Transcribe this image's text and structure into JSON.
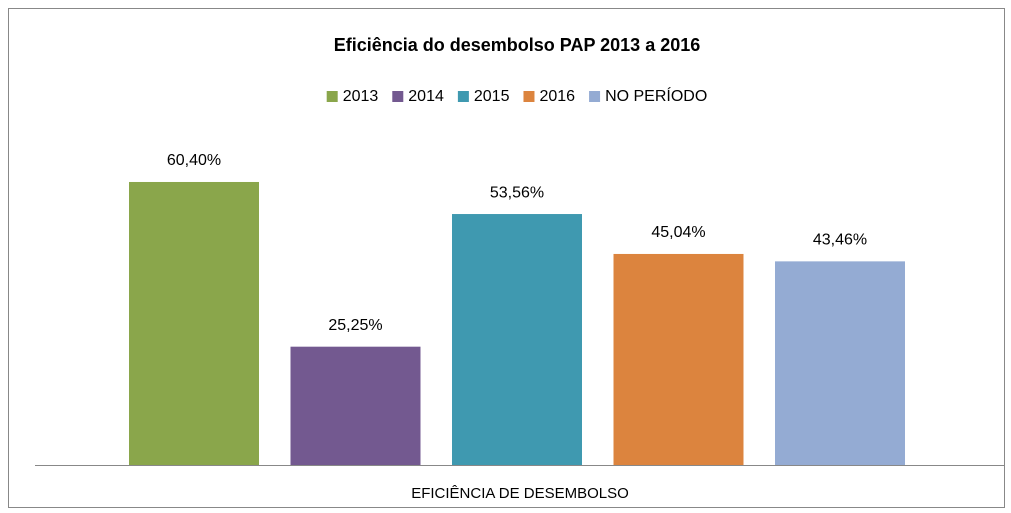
{
  "chart_data": {
    "type": "bar",
    "title": "Eficiência do desembolso PAP 2013 a 2016",
    "categories": [
      "EFICIÊNCIA DE DESEMBOLSO"
    ],
    "series": [
      {
        "name": "2013",
        "color": "#8aa64b",
        "values": [
          60.4
        ],
        "value_labels": [
          "60,40%"
        ]
      },
      {
        "name": "2014",
        "color": "#735990",
        "values": [
          25.25
        ],
        "value_labels": [
          "25,25%"
        ]
      },
      {
        "name": "2015",
        "color": "#3f99b0",
        "values": [
          53.56
        ],
        "value_labels": [
          "53,56%"
        ]
      },
      {
        "name": "2016",
        "color": "#dc843e",
        "values": [
          45.04
        ],
        "value_labels": [
          "45,04%"
        ]
      },
      {
        "name": "NO PERÍODO",
        "color": "#94abd3",
        "values": [
          43.46
        ],
        "value_labels": [
          "43,46%"
        ]
      }
    ],
    "ylim": [
      0,
      70
    ],
    "legend": "top"
  }
}
